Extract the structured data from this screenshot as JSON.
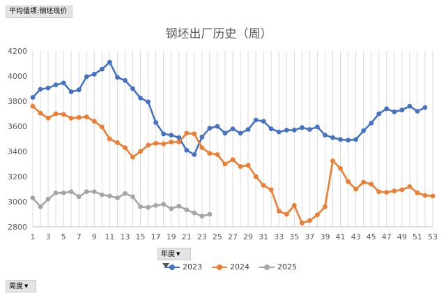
{
  "pivot": {
    "value_field": "平均值项:钢坯现价",
    "series_field": "年度",
    "axis_field": "周度"
  },
  "chart_data": {
    "type": "line",
    "title": "钢坯出厂历史（周）",
    "xlabel": "",
    "ylabel": "",
    "ylim": [
      2800,
      4200
    ],
    "yticks": [
      2800,
      3000,
      3200,
      3400,
      3600,
      3800,
      4000,
      4200
    ],
    "xlim": [
      1,
      53
    ],
    "xticks": [
      1,
      3,
      5,
      7,
      9,
      11,
      13,
      15,
      17,
      19,
      21,
      23,
      25,
      27,
      29,
      31,
      33,
      35,
      37,
      39,
      41,
      43,
      45,
      47,
      49,
      51,
      53
    ],
    "grid": "vertical",
    "legend_position": "bottom",
    "series": [
      {
        "name": "2023",
        "color": "#4472c4",
        "values": [
          3830,
          3895,
          3905,
          3930,
          3945,
          3875,
          3890,
          3995,
          4015,
          4055,
          4110,
          3990,
          3965,
          3900,
          3825,
          3795,
          3630,
          3540,
          3530,
          3510,
          3410,
          3375,
          3515,
          3585,
          3600,
          3545,
          3580,
          3545,
          3575,
          3650,
          3640,
          3580,
          3555,
          3570,
          3570,
          3590,
          3575,
          3595,
          3530,
          3510,
          3495,
          3490,
          3495,
          3565,
          3625,
          3700,
          3740,
          3715,
          3730,
          3760,
          3720,
          3750
        ]
      },
      {
        "name": "2024",
        "color": "#ed7d31",
        "values": [
          3760,
          3705,
          3665,
          3700,
          3695,
          3665,
          3670,
          3675,
          3640,
          3595,
          3500,
          3470,
          3430,
          3355,
          3400,
          3450,
          3465,
          3460,
          3475,
          3475,
          3545,
          3540,
          3430,
          3385,
          3375,
          3300,
          3335,
          3280,
          3290,
          3200,
          3130,
          3095,
          2925,
          2900,
          2970,
          2830,
          2850,
          2895,
          2960,
          3325,
          3265,
          3160,
          3100,
          3155,
          3140,
          3080,
          3075,
          3085,
          3095,
          3120,
          3070,
          3050,
          3045
        ]
      },
      {
        "name": "2025",
        "color": "#a5a5a5",
        "values": [
          3030,
          2960,
          3020,
          3070,
          3070,
          3080,
          3040,
          3080,
          3080,
          3055,
          3045,
          3030,
          3065,
          3040,
          2960,
          2955,
          2970,
          2980,
          2945,
          2965,
          2935,
          2910,
          2885,
          2900
        ]
      }
    ]
  }
}
